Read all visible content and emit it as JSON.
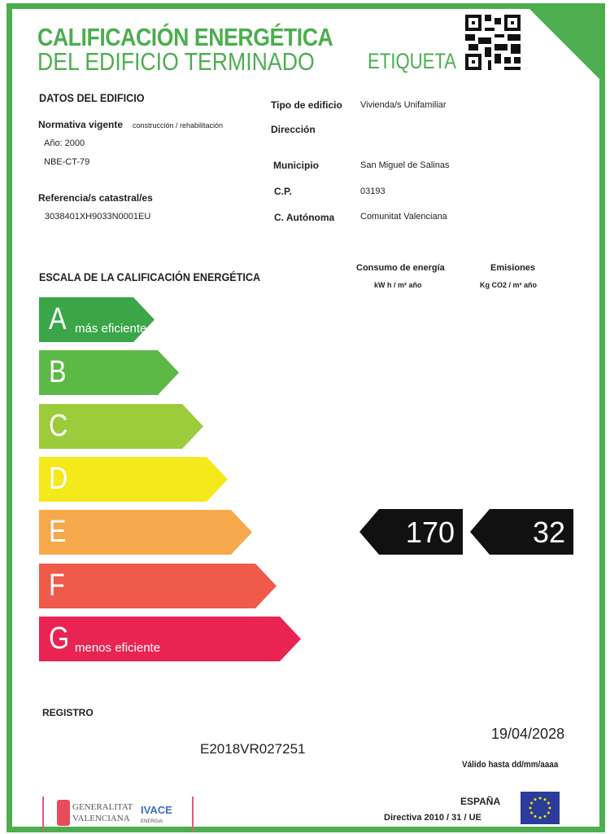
{
  "header": {
    "title_line1": "CALIFICACIÓN ENERGÉTICA",
    "title_line2": "DEL EDIFICIO  TERMINADO",
    "label": "ETIQUETA",
    "qr_icon": "qr-code-icon"
  },
  "building": {
    "section_title": "DATOS DEL EDIFICIO",
    "normativa_label": "Normativa vigente",
    "normativa_sub": "construcción / rehabilitación",
    "year": "Año: 2000",
    "norm": "NBE-CT-79",
    "cadastral_label": "Referencia/s catastral/es",
    "cadastral_value": "3038401XH9033N0001EU",
    "fields": [
      {
        "label": "Tipo de edificio",
        "value": "Vivienda/s Unifamiliar"
      },
      {
        "label": "Dirección",
        "value": ""
      },
      {
        "label": "Municipio",
        "value": "San Miguel de Salinas"
      },
      {
        "label": "C.P.",
        "value": "03193"
      },
      {
        "label": "C. Autónoma",
        "value": "Comunitat Valenciana"
      }
    ]
  },
  "scale": {
    "title": "ESCALA DE LA CALIFICACIÓN ENERGÉTICA",
    "consumption_header": "Consumo de energía",
    "consumption_unit": "kW h / m² año",
    "emissions_header": "Emisiones",
    "emissions_unit": "Kg CO2 / m² año",
    "classes": [
      {
        "letter": "A",
        "sub": "más eficiente",
        "color": "#3aa648"
      },
      {
        "letter": "B",
        "sub": "",
        "color": "#5db946"
      },
      {
        "letter": "C",
        "sub": "",
        "color": "#9ccb3b"
      },
      {
        "letter": "D",
        "sub": "",
        "color": "#f3e91b"
      },
      {
        "letter": "E",
        "sub": "",
        "color": "#f5a94b"
      },
      {
        "letter": "F",
        "sub": "",
        "color": "#ef5a4b"
      },
      {
        "letter": "G",
        "sub": "menos eficiente",
        "color": "#ea2452"
      }
    ],
    "rating_class": "E",
    "consumption_value": "170",
    "emissions_value": "32"
  },
  "registry": {
    "label": "REGISTRO",
    "number": "E2018VR027251",
    "valid_date": "19/04/2028",
    "valid_label": "Válido hasta dd/mm/aaaa"
  },
  "footer": {
    "generalitat": "GENERALITAT VALENCIANA",
    "ivace": "IVACE",
    "ivace_sub": "ENERGIA",
    "country": "ESPAÑA",
    "directive": "Directiva 2010 / 31 / UE",
    "eu_flag_icon": "eu-flag-icon"
  }
}
